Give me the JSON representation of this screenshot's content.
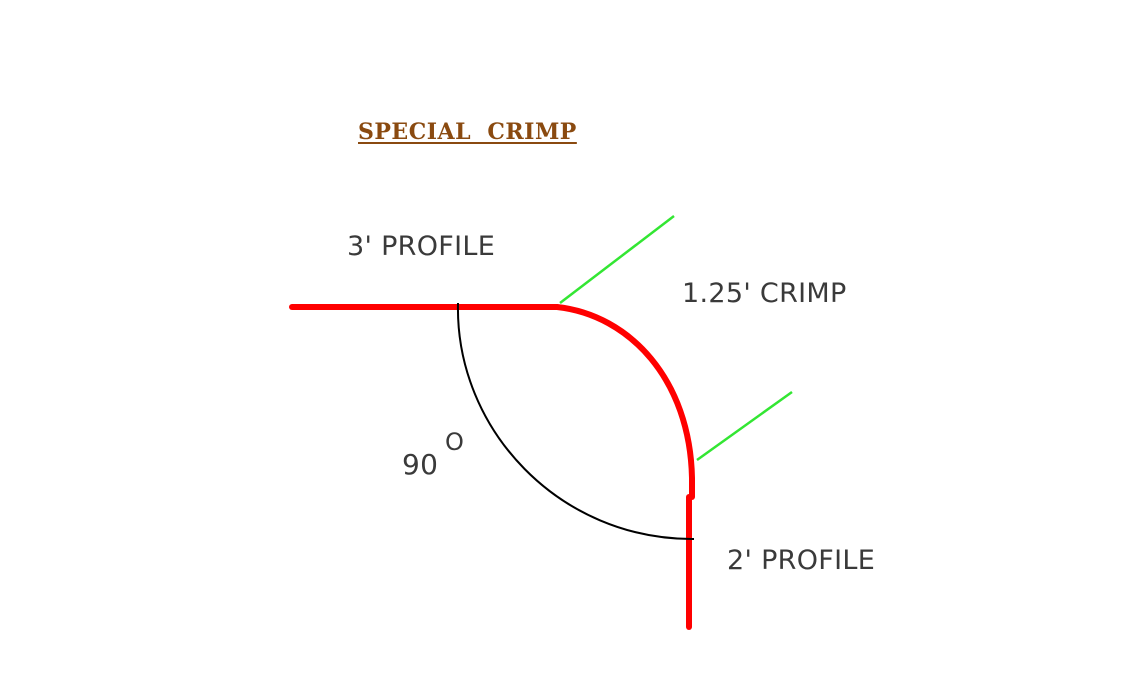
{
  "title": "SPECIAL  CRIMP",
  "labels": {
    "top_profile": "3' PROFILE",
    "crimp": "1.25' CRIMP",
    "bottom_profile": "2' PROFILE",
    "angle": "90",
    "degree": "O"
  },
  "colors": {
    "title": "#8a4a10",
    "profile_line": "#ff0000",
    "dimension_lines": "#33e633",
    "angle_arc": "#000000",
    "label_text": "#3a3a3a"
  }
}
